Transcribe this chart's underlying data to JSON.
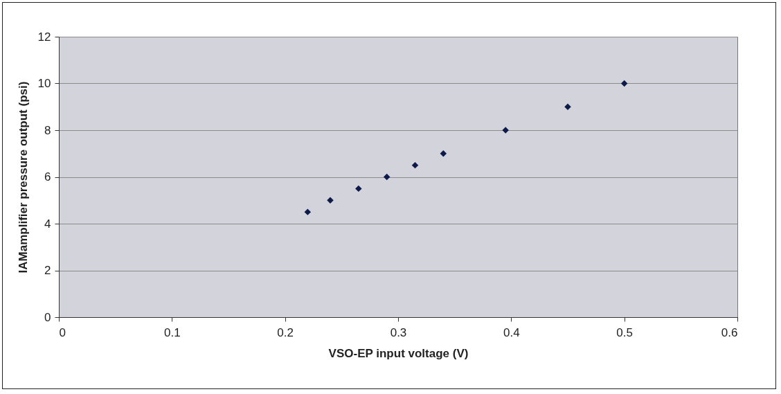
{
  "chart_data": {
    "type": "scatter",
    "xlabel": "VSO-EP input voltage (V)",
    "ylabel": "IAMamplifier pressure output (psi)",
    "x": [
      0.22,
      0.24,
      0.265,
      0.29,
      0.315,
      0.34,
      0.395,
      0.45,
      0.5
    ],
    "series": [
      {
        "color": "#0d1a4a",
        "values": [
          4.5,
          5,
          5.5,
          6,
          6.5,
          7,
          8,
          9,
          10
        ]
      }
    ],
    "xlim": [
      0,
      0.6
    ],
    "xticks": [
      0,
      0.1,
      0.2,
      0.3,
      0.4,
      0.5,
      0.6
    ],
    "ylim": [
      0,
      12
    ],
    "yticks": [
      0,
      2,
      4,
      6,
      8,
      10,
      12
    ],
    "grid": "y",
    "marker": "diamond",
    "legend": false
  }
}
